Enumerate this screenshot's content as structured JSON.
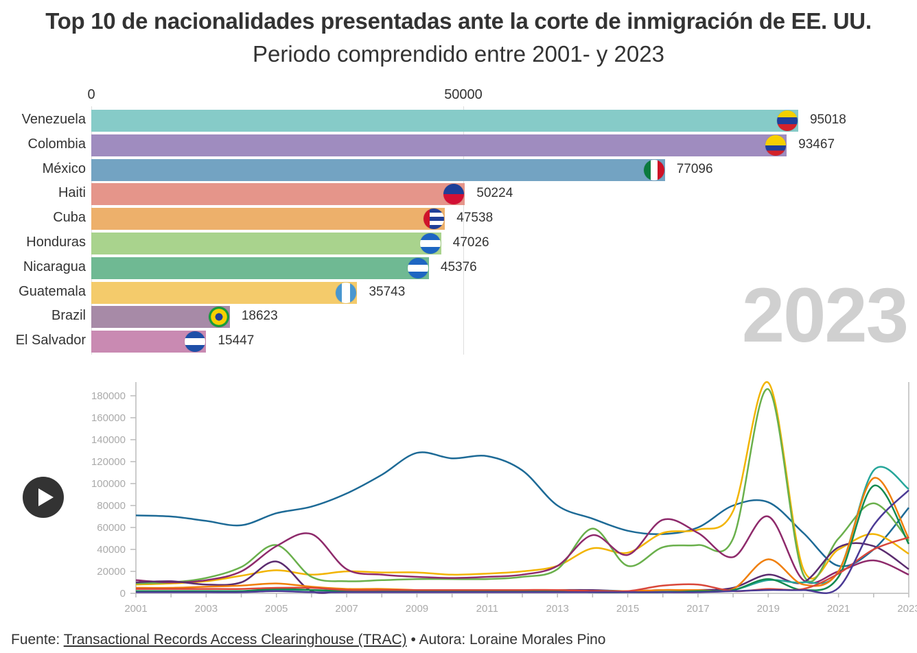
{
  "title": "Top 10 de nacionalidades presentadas ante la corte de inmigración de EE. UU.",
  "subtitle": "Periodo comprendido entre 2001- y 2023",
  "current_year": "2023",
  "play_button": {
    "icon": "play-icon"
  },
  "footer": {
    "source_label": "Fuente:",
    "source_link": "Transactional Records Access Clearinghouse (TRAC)",
    "separator": " • ",
    "author": "Autora: Loraine Morales Pino"
  },
  "chart_data": [
    {
      "type": "bar",
      "orientation": "horizontal",
      "year": "2023",
      "axis_ticks": [
        "0",
        "50000"
      ],
      "xlim": [
        0,
        100000
      ],
      "grid": true,
      "categories": [
        "Venezuela",
        "Colombia",
        "México",
        "Haiti",
        "Cuba",
        "Honduras",
        "Nicaragua",
        "Guatemala",
        "Brazil",
        "El Salvador"
      ],
      "values": [
        95018,
        93467,
        77096,
        50224,
        47538,
        47026,
        45376,
        35743,
        18623,
        15447
      ],
      "value_labels": [
        "95018",
        "93467",
        "77096",
        "50224",
        "47538",
        "47026",
        "45376",
        "35743",
        "18623",
        "15447"
      ],
      "colors": [
        "#86cbc8",
        "#9f8cbf",
        "#73a3c2",
        "#e5958a",
        "#edb06b",
        "#a9d38d",
        "#6fb993",
        "#f4cb6b",
        "#a78aa7",
        "#c98ab2"
      ],
      "flags": [
        "venezuela-flag",
        "colombia-flag",
        "mexico-flag",
        "haiti-flag",
        "cuba-flag",
        "honduras-flag",
        "nicaragua-flag",
        "guatemala-flag",
        "brazil-flag",
        "el-salvador-flag"
      ]
    },
    {
      "type": "line",
      "x": [
        2001,
        2002,
        2003,
        2004,
        2005,
        2006,
        2007,
        2008,
        2009,
        2010,
        2011,
        2012,
        2013,
        2014,
        2015,
        2016,
        2017,
        2018,
        2019,
        2020,
        2021,
        2022,
        2023
      ],
      "xticks": [
        "2001",
        "2003",
        "2005",
        "2007",
        "2009",
        "2011",
        "2013",
        "2015",
        "2017",
        "2019",
        "2021",
        "2023"
      ],
      "yticks": [
        "0",
        "20000",
        "40000",
        "60000",
        "80000",
        "100000",
        "120000",
        "140000",
        "160000",
        "180000"
      ],
      "ylim": [
        0,
        190000
      ],
      "xlim": [
        2001,
        2023
      ],
      "legend": "none",
      "series": [
        {
          "color": "#1d6a96",
          "values": [
            71000,
            70000,
            66000,
            62000,
            73000,
            79000,
            91000,
            108000,
            128000,
            123000,
            125000,
            112000,
            80000,
            68000,
            57000,
            54000,
            60000,
            80000,
            83000,
            55000,
            25000,
            40000,
            78000
          ]
        },
        {
          "color": "#f2b400",
          "values": [
            8000,
            9000,
            11000,
            16000,
            21000,
            17000,
            20000,
            19000,
            19000,
            17000,
            18000,
            20000,
            25000,
            41000,
            37000,
            55000,
            58000,
            75000,
            192000,
            22000,
            40000,
            54000,
            36000
          ]
        },
        {
          "color": "#6ab04c",
          "values": [
            9000,
            10000,
            14000,
            24000,
            44000,
            15000,
            11000,
            12000,
            13000,
            13000,
            13000,
            15000,
            22000,
            59000,
            25000,
            42000,
            44000,
            50000,
            186000,
            17000,
            50000,
            82000,
            48000
          ]
        },
        {
          "color": "#8e2a6b",
          "values": [
            12000,
            10000,
            12000,
            20000,
            43000,
            54000,
            22000,
            17000,
            15000,
            14000,
            15000,
            17000,
            25000,
            53000,
            35000,
            67000,
            55000,
            33000,
            70000,
            12000,
            20000,
            30000,
            17000
          ]
        },
        {
          "color": "#5b2c6f",
          "values": [
            10000,
            11000,
            8000,
            10000,
            29000,
            2000,
            3000,
            3000,
            3000,
            3000,
            3000,
            3000,
            3000,
            3000,
            2000,
            3000,
            3000,
            5000,
            17000,
            10000,
            42000,
            43000,
            22000
          ]
        },
        {
          "color": "#26a69a",
          "values": [
            2000,
            2000,
            2000,
            2000,
            3000,
            3000,
            2000,
            2000,
            2000,
            2000,
            2000,
            2000,
            2000,
            2000,
            2000,
            2000,
            2000,
            3000,
            12000,
            10000,
            20000,
            112000,
            95000
          ]
        },
        {
          "color": "#f07f0a",
          "values": [
            5000,
            5000,
            6000,
            7000,
            9000,
            6000,
            4000,
            4000,
            3000,
            3000,
            3000,
            3000,
            3000,
            2000,
            2000,
            3000,
            3000,
            4000,
            31000,
            8000,
            20000,
            105000,
            50000
          ]
        },
        {
          "color": "#138a50",
          "values": [
            2000,
            2000,
            2000,
            2000,
            4000,
            3000,
            2000,
            2000,
            2000,
            2000,
            2000,
            2000,
            2000,
            1000,
            1000,
            1000,
            2000,
            3000,
            13000,
            3000,
            15000,
            98000,
            45000
          ]
        },
        {
          "color": "#d9473a",
          "values": [
            4000,
            4000,
            4000,
            4000,
            5000,
            5000,
            3000,
            3000,
            3000,
            3000,
            3000,
            3000,
            3000,
            2000,
            2000,
            7000,
            8000,
            2000,
            4000,
            4000,
            18000,
            40000,
            51000
          ]
        },
        {
          "color": "#4b3a95",
          "values": [
            1000,
            1000,
            1000,
            1000,
            2000,
            1000,
            1000,
            1000,
            1000,
            1000,
            1000,
            1000,
            1000,
            1000,
            1000,
            1000,
            1000,
            2000,
            3000,
            3000,
            5000,
            62000,
            94000
          ]
        }
      ]
    }
  ]
}
